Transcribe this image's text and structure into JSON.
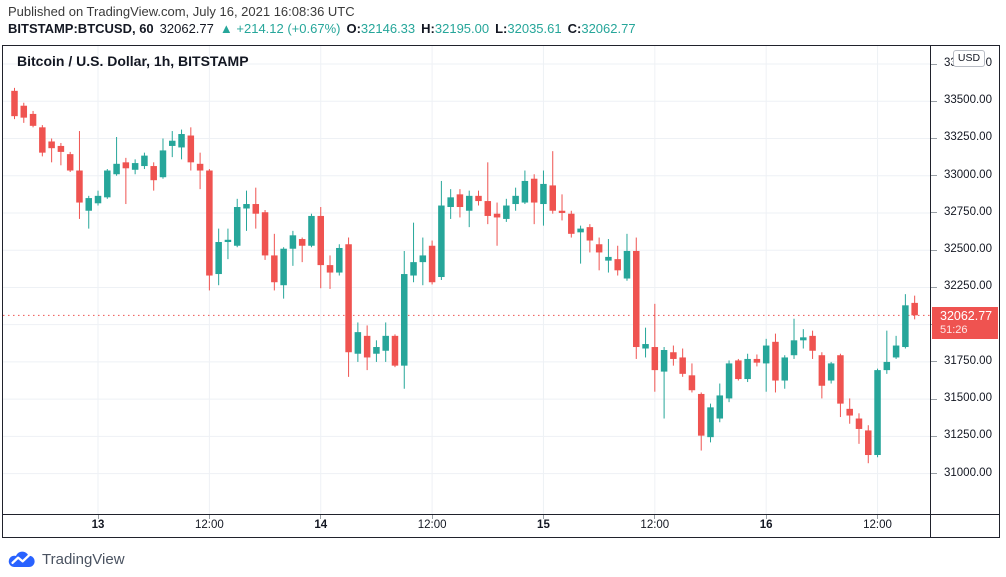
{
  "header": {
    "line1": "Published on TradingView.com, July 16, 2021 16:08:36 UTC",
    "symbol_line": {
      "symbol": "BITSTAMP:BTCUSD, 60",
      "last": "32062.77",
      "arrow": "▲",
      "change": "+214.12 (+0.67%)",
      "o_label": "O:",
      "o": "32146.33",
      "h_label": "H:",
      "h": "32195.00",
      "l_label": "L:",
      "l": "32035.61",
      "c_label": "C:",
      "c": "32062.77"
    }
  },
  "chart": {
    "title": "Bitcoin / U.S. Dollar, 1h, BITSTAMP",
    "currency_button": "USD",
    "price_label": {
      "price": "32062.77",
      "countdown": "51:26"
    }
  },
  "footer": {
    "logo_text": "TradingView"
  },
  "chart_data": {
    "type": "candlestick",
    "title": "Bitcoin / U.S. Dollar, 1h, BITSTAMP",
    "symbol": "BITSTAMP:BTCUSD",
    "interval": "60",
    "legend_position": "top-left",
    "grid": true,
    "ylim": [
      30729,
      33871
    ],
    "price_ticks": [
      "33750.00",
      "33500.00",
      "33250.00",
      "33000.00",
      "32750.00",
      "32500.00",
      "32250.00",
      "32000.00",
      "31750.00",
      "31500.00",
      "31250.00",
      "31000.00"
    ],
    "x_ticks": [
      {
        "i": 9,
        "label": "13",
        "bold": true
      },
      {
        "i": 21,
        "label": "12:00",
        "bold": false
      },
      {
        "i": 33,
        "label": "14",
        "bold": true
      },
      {
        "i": 45,
        "label": "12:00",
        "bold": false
      },
      {
        "i": 57,
        "label": "15",
        "bold": true
      },
      {
        "i": 69,
        "label": "12:00",
        "bold": false
      },
      {
        "i": 81,
        "label": "16",
        "bold": true
      },
      {
        "i": 93,
        "label": "12:00",
        "bold": false
      }
    ],
    "current_price": 32062.77,
    "countdown": "51:26",
    "colors": {
      "up": "#26a69a",
      "down": "#ef5350",
      "grid": "#eef1f5",
      "price_line": "#ef5350"
    },
    "x_start": 11.5,
    "x_step": 9.28,
    "candles_format": [
      "open",
      "high",
      "low",
      "close"
    ],
    "candles": [
      [
        33570,
        33590,
        33380,
        33400
      ],
      [
        33470,
        33490,
        33355,
        33390
      ],
      [
        33415,
        33435,
        33325,
        33335
      ],
      [
        33325,
        33340,
        33130,
        33155
      ],
      [
        33230,
        33250,
        33090,
        33185
      ],
      [
        33200,
        33220,
        33070,
        33160
      ],
      [
        33145,
        33160,
        33025,
        33035
      ],
      [
        33035,
        33300,
        32710,
        32820
      ],
      [
        32765,
        32865,
        32645,
        32850
      ],
      [
        32815,
        32900,
        32800,
        32865
      ],
      [
        32855,
        33045,
        32845,
        33035
      ],
      [
        33010,
        33260,
        33000,
        33080
      ],
      [
        33090,
        33120,
        32810,
        33050
      ],
      [
        33040,
        33110,
        33010,
        33085
      ],
      [
        33065,
        33155,
        33045,
        33135
      ],
      [
        33065,
        33090,
        32900,
        32970
      ],
      [
        32990,
        33250,
        32980,
        33170
      ],
      [
        33200,
        33300,
        33125,
        33235
      ],
      [
        33190,
        33310,
        33110,
        33280
      ],
      [
        33270,
        33325,
        33035,
        33090
      ],
      [
        33080,
        33155,
        32910,
        33035
      ],
      [
        33035,
        33045,
        32230,
        32330
      ],
      [
        32340,
        32645,
        32265,
        32555
      ],
      [
        32555,
        32645,
        32440,
        32570
      ],
      [
        32530,
        32845,
        32520,
        32790
      ],
      [
        32780,
        32900,
        32630,
        32810
      ],
      [
        32810,
        32920,
        32645,
        32745
      ],
      [
        32755,
        32770,
        32435,
        32465
      ],
      [
        32465,
        32610,
        32230,
        32285
      ],
      [
        32265,
        32520,
        32175,
        32510
      ],
      [
        32510,
        32630,
        32395,
        32600
      ],
      [
        32575,
        32585,
        32420,
        32530
      ],
      [
        32530,
        32745,
        32520,
        32730
      ],
      [
        32730,
        32790,
        32245,
        32400
      ],
      [
        32400,
        32465,
        32240,
        32350
      ],
      [
        32350,
        32540,
        32330,
        32515
      ],
      [
        32540,
        32585,
        31650,
        31815
      ],
      [
        31805,
        32015,
        31750,
        31950
      ],
      [
        31925,
        31995,
        31695,
        31780
      ],
      [
        31805,
        31895,
        31750,
        31850
      ],
      [
        31825,
        32015,
        31750,
        31925
      ],
      [
        31925,
        31935,
        31715,
        31725
      ],
      [
        31725,
        32495,
        31570,
        32340
      ],
      [
        32330,
        32685,
        32285,
        32420
      ],
      [
        32420,
        32585,
        32265,
        32465
      ],
      [
        32530,
        32565,
        32270,
        32285
      ],
      [
        32320,
        32965,
        32300,
        32800
      ],
      [
        32790,
        32910,
        32710,
        32855
      ],
      [
        32875,
        32910,
        32720,
        32790
      ],
      [
        32765,
        32900,
        32655,
        32865
      ],
      [
        32865,
        32900,
        32800,
        32830
      ],
      [
        32830,
        33090,
        32675,
        32730
      ],
      [
        32745,
        32820,
        32530,
        32720
      ],
      [
        32710,
        32845,
        32690,
        32800
      ],
      [
        32810,
        32920,
        32765,
        32865
      ],
      [
        32820,
        33035,
        32810,
        32965
      ],
      [
        32980,
        33010,
        32675,
        32820
      ],
      [
        32810,
        33035,
        32665,
        32945
      ],
      [
        32935,
        33165,
        32745,
        32765
      ],
      [
        32765,
        32875,
        32700,
        32750
      ],
      [
        32745,
        32765,
        32585,
        32610
      ],
      [
        32620,
        32665,
        32410,
        32645
      ],
      [
        32655,
        32675,
        32485,
        32565
      ],
      [
        32540,
        32585,
        32365,
        32485
      ],
      [
        32430,
        32575,
        32350,
        32455
      ],
      [
        32440,
        32530,
        32330,
        32365
      ],
      [
        32310,
        32610,
        32295,
        32495
      ],
      [
        32495,
        32585,
        31770,
        31850
      ],
      [
        31840,
        31980,
        31780,
        31870
      ],
      [
        31850,
        32140,
        31550,
        31695
      ],
      [
        31685,
        31850,
        31370,
        31830
      ],
      [
        31815,
        31860,
        31725,
        31770
      ],
      [
        31780,
        31840,
        31650,
        31670
      ],
      [
        31660,
        31740,
        31545,
        31560
      ],
      [
        31535,
        31545,
        31155,
        31255
      ],
      [
        31245,
        31470,
        31210,
        31445
      ],
      [
        31370,
        31605,
        31345,
        31525
      ],
      [
        31505,
        31760,
        31480,
        31740
      ],
      [
        31760,
        31770,
        31625,
        31635
      ],
      [
        31635,
        31805,
        31615,
        31770
      ],
      [
        31770,
        31800,
        31720,
        31745
      ],
      [
        31740,
        31905,
        31550,
        31860
      ],
      [
        31885,
        31940,
        31545,
        31625
      ],
      [
        31625,
        31795,
        31570,
        31780
      ],
      [
        31795,
        32040,
        31770,
        31895
      ],
      [
        31895,
        31970,
        31840,
        31915
      ],
      [
        31925,
        31960,
        31770,
        31825
      ],
      [
        31795,
        31815,
        31505,
        31590
      ],
      [
        31625,
        31750,
        31605,
        31740
      ],
      [
        31795,
        31805,
        31380,
        31470
      ],
      [
        31435,
        31505,
        31335,
        31390
      ],
      [
        31370,
        31405,
        31200,
        31300
      ],
      [
        31290,
        31325,
        31070,
        31125
      ],
      [
        31125,
        31705,
        31110,
        31695
      ],
      [
        31695,
        31960,
        31670,
        31750
      ],
      [
        31780,
        31925,
        31770,
        31860
      ],
      [
        31850,
        32205,
        31840,
        32130
      ],
      [
        32146.33,
        32195.0,
        32035.61,
        32062.77
      ]
    ]
  }
}
